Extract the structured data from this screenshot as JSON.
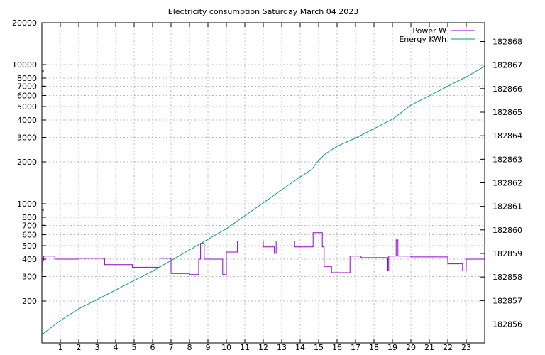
{
  "chart_data": {
    "type": "line",
    "title": "Electricity consumption Saturday March 04 2023",
    "xlabel": "",
    "ylabel": "",
    "y2label": "",
    "grid": true,
    "legend_position": "top-right",
    "x_range": [
      0,
      24
    ],
    "x_ticks": [
      "1",
      "2",
      "3",
      "4",
      "5",
      "6",
      "7",
      "8",
      "9",
      "10",
      "11",
      "12",
      "13",
      "14",
      "15",
      "16",
      "17",
      "18",
      "19",
      "20",
      "21",
      "22",
      "23"
    ],
    "y_scale": "log",
    "y_range": [
      100,
      20000
    ],
    "y_ticks": [
      200,
      300,
      400,
      500,
      600,
      700,
      800,
      1000,
      2000,
      3000,
      4000,
      5000,
      6000,
      7000,
      8000,
      10000,
      20000
    ],
    "y2_range": [
      182855.2,
      182868.8
    ],
    "y2_ticks": [
      182856,
      182857,
      182858,
      182859,
      182860,
      182861,
      182862,
      182863,
      182864,
      182865,
      182866,
      182867,
      182868
    ],
    "series": [
      {
        "name": "Power W",
        "axis": "y",
        "color": "#9400d3",
        "step": true,
        "x": [
          0,
          0.05,
          0.1,
          0.15,
          0.7,
          1.0,
          2.0,
          3.4,
          4.0,
          4.9,
          5.0,
          6.0,
          6.4,
          7.0,
          7.1,
          8.0,
          8.5,
          8.6,
          8.8,
          8.95,
          9.0,
          9.5,
          9.8,
          10.0,
          10.5,
          10.6,
          11.5,
          12.0,
          12.5,
          12.6,
          12.7,
          13.0,
          13.5,
          13.7,
          14.5,
          14.7,
          15.0,
          15.2,
          15.3,
          15.5,
          15.7,
          16.0,
          16.5,
          16.7,
          17.0,
          17.3,
          17.5,
          18.0,
          18.6,
          18.75,
          18.8,
          19.0,
          19.2,
          19.3,
          19.5,
          20.0,
          20.5,
          21.0,
          22.0,
          22.7,
          22.8,
          23.0,
          24.0
        ],
        "y": [
          330,
          390,
          420,
          420,
          400,
          400,
          405,
          365,
          365,
          350,
          350,
          350,
          405,
          315,
          315,
          310,
          400,
          520,
          400,
          400,
          400,
          400,
          310,
          450,
          450,
          540,
          540,
          490,
          490,
          440,
          540,
          540,
          540,
          490,
          490,
          620,
          620,
          490,
          355,
          355,
          320,
          320,
          320,
          420,
          420,
          410,
          410,
          410,
          410,
          330,
          420,
          420,
          550,
          420,
          420,
          415,
          415,
          415,
          370,
          370,
          330,
          400,
          400
        ]
      },
      {
        "name": "Energy KWh",
        "axis": "y2",
        "color": "#009e73",
        "step": false,
        "x": [
          0,
          1,
          2,
          3,
          4,
          5,
          6,
          7,
          8,
          9,
          10,
          11,
          12,
          13,
          14,
          14.6,
          15.0,
          15.4,
          16,
          17,
          18,
          19,
          20,
          21,
          22,
          23,
          24
        ],
        "y": [
          182855.55,
          182856.15,
          182856.65,
          182857.05,
          182857.45,
          182857.85,
          182858.25,
          182858.7,
          182859.15,
          182859.6,
          182860.05,
          182860.6,
          182861.15,
          182861.7,
          182862.25,
          182862.55,
          182862.95,
          182863.25,
          182863.55,
          182863.9,
          182864.3,
          182864.7,
          182865.3,
          182865.7,
          182866.1,
          182866.5,
          182866.95
        ]
      }
    ]
  }
}
